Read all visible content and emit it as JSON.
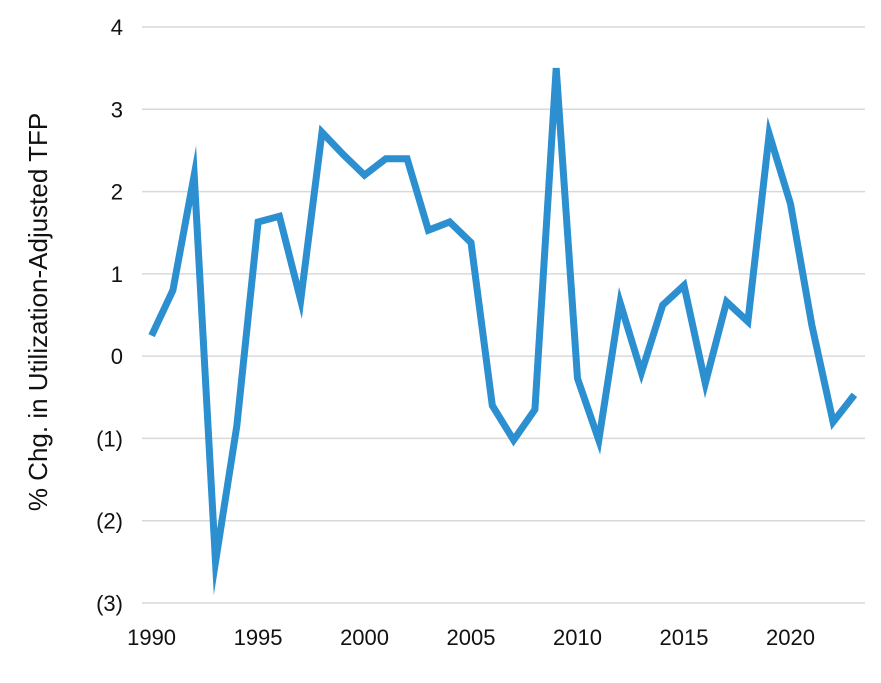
{
  "chart_data": {
    "type": "line",
    "title": "",
    "xlabel": "",
    "ylabel": "% Chg. in Utilization-Adjusted TFP",
    "xlim": [
      1990,
      2023
    ],
    "ylim": [
      -3,
      4
    ],
    "grid": true,
    "x_ticks": [
      1990,
      1995,
      2000,
      2005,
      2010,
      2015,
      2020
    ],
    "x_tick_labels": [
      "1990",
      "1995",
      "2000",
      "2005",
      "2010",
      "2015",
      "2020"
    ],
    "y_ticks": [
      4,
      3,
      2,
      1,
      0,
      -1,
      -2,
      -3
    ],
    "y_tick_labels": [
      "4",
      "3",
      "2",
      "1",
      "0",
      "(1)",
      "(2)",
      "(3)"
    ],
    "series": [
      {
        "color": "#2b8fd0",
        "x": [
          1990,
          1991,
          1992,
          1993,
          1994,
          1995,
          1996,
          1997,
          1998,
          1999,
          2000,
          2001,
          2002,
          2003,
          2004,
          2005,
          2006,
          2007,
          2008,
          2009,
          2010,
          2011,
          2012,
          2013,
          2014,
          2015,
          2016,
          2017,
          2018,
          2019,
          2020,
          2021,
          2022,
          2023
        ],
        "values": [
          0.25,
          0.8,
          2.2,
          -2.5,
          -0.85,
          1.63,
          1.7,
          0.68,
          2.72,
          2.45,
          2.2,
          2.4,
          2.4,
          1.53,
          1.63,
          1.38,
          -0.6,
          -1.02,
          -0.65,
          3.5,
          -0.27,
          -1.02,
          0.65,
          -0.2,
          0.62,
          0.86,
          -0.33,
          0.66,
          0.42,
          2.7,
          1.85,
          0.38,
          -0.8,
          -0.47
        ]
      }
    ]
  }
}
